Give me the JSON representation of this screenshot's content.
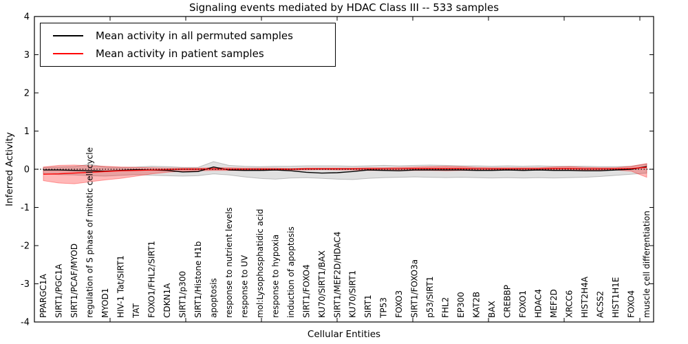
{
  "chart_data": {
    "type": "line",
    "title": "Signaling events mediated by HDAC Class III -- 533 samples",
    "xlabel": "Cellular Entities",
    "ylabel": "Inferred Activity",
    "ylim": [
      -4,
      4
    ],
    "yticks": [
      4,
      3,
      2,
      1,
      0,
      -1,
      -2,
      -3,
      -4
    ],
    "grid": false,
    "legend_position": "upper left",
    "zero_reference_line": {
      "style": "dotted",
      "color": "#000000",
      "y": 0
    },
    "categories": [
      "PPARGC1A",
      "SIRT1/PGC1A",
      "SIRT1/PCAF/MYOD",
      "regulation of S phase of mitotic cell cycle",
      "MYOD1",
      "HIV-1 Tat/SIRT1",
      "TAT",
      "FOXO1/FHL2/SIRT1",
      "CDKN1A",
      "SIRT1/p300",
      "SIRT1/Histone H1b",
      "apoptosis",
      "response to nutrient levels",
      "response to UV",
      "mol:Lysophosphatidic acid",
      "response to hypoxia",
      "induction of apoptosis",
      "SIRT1/FOXO4",
      "KU70/SIRT1/BAX",
      "SIRT1/MEF2D/HDAC4",
      "KU70/SIRT1",
      "SIRT1",
      "TP53",
      "FOXO3",
      "SIRT1/FOXO3a",
      "p53/SIRT1",
      "FHL2",
      "EP300",
      "KAT2B",
      "BAX",
      "CREBBP",
      "FOXO1",
      "HDAC4",
      "MEF2D",
      "XRCC6",
      "HIST2H4A",
      "ACSS2",
      "HIST1H1E",
      "FOXO4",
      "muscle cell differentiation"
    ],
    "series": [
      {
        "name": "Mean activity in all permuted samples",
        "color": "#000000",
        "band_fill_opacity": 0.12,
        "mean": [
          -0.02,
          -0.02,
          -0.03,
          -0.04,
          -0.05,
          -0.03,
          -0.01,
          -0.02,
          -0.03,
          -0.07,
          -0.06,
          0.06,
          -0.02,
          -0.03,
          -0.03,
          -0.02,
          -0.04,
          -0.08,
          -0.1,
          -0.09,
          -0.06,
          -0.02,
          -0.03,
          -0.04,
          -0.02,
          -0.02,
          -0.02,
          -0.02,
          -0.03,
          -0.03,
          -0.02,
          -0.03,
          -0.02,
          -0.03,
          -0.03,
          -0.04,
          -0.04,
          -0.02,
          0.0,
          0.07
        ],
        "band_high": [
          0.05,
          0.06,
          0.07,
          0.13,
          0.06,
          0.05,
          0.06,
          0.08,
          0.07,
          0.05,
          0.05,
          0.2,
          0.1,
          0.08,
          0.07,
          0.08,
          0.08,
          0.09,
          0.09,
          0.09,
          0.08,
          0.09,
          0.1,
          0.09,
          0.1,
          0.11,
          0.1,
          0.09,
          0.09,
          0.08,
          0.09,
          0.08,
          0.09,
          0.08,
          0.08,
          0.08,
          0.07,
          0.07,
          0.08,
          0.14
        ],
        "band_low": [
          -0.12,
          -0.14,
          -0.15,
          -0.17,
          -0.18,
          -0.16,
          -0.14,
          -0.16,
          -0.17,
          -0.18,
          -0.17,
          -0.12,
          -0.15,
          -0.2,
          -0.24,
          -0.26,
          -0.23,
          -0.22,
          -0.24,
          -0.26,
          -0.27,
          -0.24,
          -0.22,
          -0.21,
          -0.2,
          -0.21,
          -0.22,
          -0.21,
          -0.22,
          -0.23,
          -0.22,
          -0.23,
          -0.22,
          -0.23,
          -0.22,
          -0.21,
          -0.19,
          -0.16,
          -0.13,
          -0.1
        ]
      },
      {
        "name": "Mean activity in patient samples",
        "color": "#ff0000",
        "band_fill_opacity": 0.28,
        "mean": [
          -0.13,
          -0.12,
          -0.1,
          -0.08,
          -0.06,
          -0.04,
          -0.03,
          -0.02,
          -0.01,
          0.0,
          0.0,
          0.01,
          0.0,
          0.0,
          0.0,
          0.0,
          0.0,
          0.01,
          0.01,
          0.01,
          0.01,
          0.01,
          0.01,
          0.01,
          0.02,
          0.02,
          0.02,
          0.02,
          0.01,
          0.01,
          0.01,
          0.01,
          0.01,
          0.02,
          0.02,
          0.01,
          0.01,
          0.01,
          0.02,
          0.05
        ],
        "band_high": [
          0.06,
          0.1,
          0.11,
          0.09,
          0.08,
          0.06,
          0.05,
          0.04,
          0.03,
          0.03,
          0.03,
          0.04,
          0.04,
          0.03,
          0.03,
          0.03,
          0.02,
          0.03,
          0.03,
          0.03,
          0.03,
          0.04,
          0.04,
          0.05,
          0.06,
          0.07,
          0.08,
          0.07,
          0.05,
          0.04,
          0.04,
          0.04,
          0.04,
          0.06,
          0.07,
          0.05,
          0.04,
          0.04,
          0.08,
          0.15
        ],
        "band_low": [
          -0.3,
          -0.36,
          -0.38,
          -0.33,
          -0.28,
          -0.24,
          -0.18,
          -0.12,
          -0.08,
          -0.05,
          -0.04,
          -0.03,
          -0.03,
          -0.03,
          -0.02,
          -0.02,
          -0.02,
          -0.02,
          -0.01,
          -0.02,
          -0.02,
          -0.03,
          -0.03,
          -0.04,
          -0.03,
          -0.03,
          -0.04,
          -0.03,
          -0.03,
          -0.02,
          -0.02,
          -0.03,
          -0.02,
          -0.02,
          -0.02,
          -0.02,
          -0.02,
          -0.02,
          -0.05,
          -0.21
        ]
      }
    ]
  }
}
